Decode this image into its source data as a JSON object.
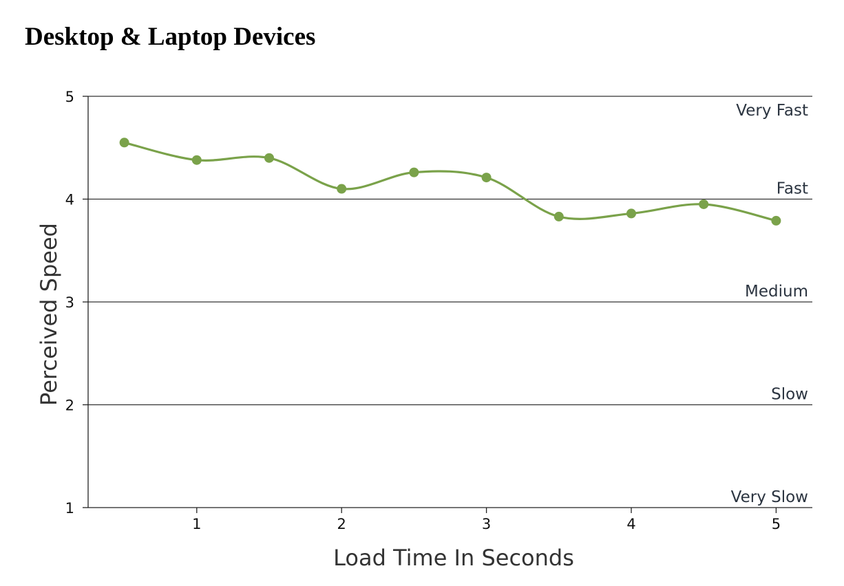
{
  "title": "Desktop & Laptop Devices",
  "chart_data": {
    "type": "line",
    "title": "Desktop & Laptop Devices",
    "xlabel": "Load Time In Seconds",
    "ylabel": "Perceived Speed",
    "xlim": [
      0.25,
      5.25
    ],
    "ylim": [
      1,
      5
    ],
    "x_ticks": [
      1,
      2,
      3,
      4,
      5
    ],
    "y_ticks": [
      1,
      2,
      3,
      4,
      5
    ],
    "grid": "horizontal",
    "smooth": true,
    "line_color": "#7aa24a",
    "level_labels": [
      {
        "label": "Very Fast",
        "value": 5
      },
      {
        "label": "Fast",
        "value": 4
      },
      {
        "label": "Medium",
        "value": 3
      },
      {
        "label": "Slow",
        "value": 2
      },
      {
        "label": "Very Slow",
        "value": 1
      }
    ],
    "series": [
      {
        "x": [
          0.5,
          1,
          1.5,
          2,
          2.5,
          3,
          3.5,
          4,
          4.5,
          5
        ],
        "values": [
          4.55,
          4.38,
          4.4,
          4.1,
          4.26,
          4.21,
          3.83,
          3.86,
          3.95,
          3.79
        ]
      }
    ]
  }
}
